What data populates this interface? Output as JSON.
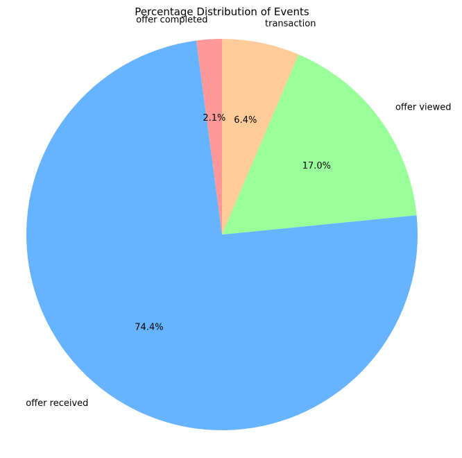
{
  "chart_data": {
    "type": "pie",
    "title": "Percentage Distribution of Events",
    "start_angle_deg": 90,
    "direction": "counterclockwise",
    "slices": [
      {
        "label": "offer completed",
        "value": 2.1,
        "pct_label": "2.1%",
        "color": "#ff9999"
      },
      {
        "label": "offer received",
        "value": 74.4,
        "pct_label": "74.4%",
        "color": "#66b3ff"
      },
      {
        "label": "offer viewed",
        "value": 17.0,
        "pct_label": "17.0%",
        "color": "#99ff99"
      },
      {
        "label": "transaction",
        "value": 6.4,
        "pct_label": "6.4%",
        "color": "#ffcc99"
      }
    ]
  }
}
